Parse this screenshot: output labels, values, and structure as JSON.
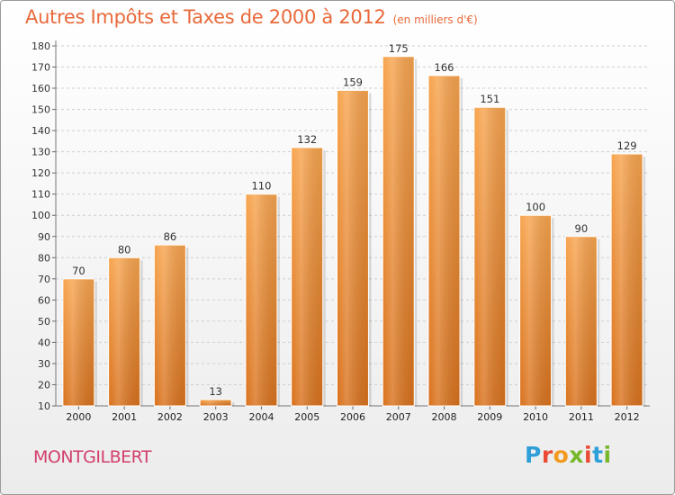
{
  "header": {
    "title": "Autres Impôts et Taxes de 2000 à 2012",
    "subtitle": "(en milliers d'€)"
  },
  "footer": {
    "city": "MONTGILBERT",
    "logo": {
      "letters": [
        "P",
        "r",
        "o",
        "x",
        "i",
        "t",
        "i"
      ],
      "colors": [
        "#2e9fd8",
        "#e94b35",
        "#f29a1f",
        "#76b82a",
        "#e94b35",
        "#2e9fd8",
        "#76b82a"
      ]
    }
  },
  "chart_data": {
    "type": "bar",
    "title": "Autres Impôts et Taxes de 2000 à 2012",
    "subtitle": "(en milliers d'€)",
    "categories": [
      "2000",
      "2001",
      "2002",
      "2003",
      "2004",
      "2005",
      "2006",
      "2007",
      "2008",
      "2009",
      "2010",
      "2011",
      "2012"
    ],
    "values": [
      70,
      80,
      86,
      13,
      110,
      132,
      159,
      175,
      166,
      151,
      100,
      90,
      129
    ],
    "ylim": [
      10,
      180
    ],
    "yticks": [
      10,
      20,
      30,
      40,
      50,
      60,
      70,
      80,
      90,
      100,
      110,
      120,
      130,
      140,
      150,
      160,
      170,
      180
    ],
    "grid": true,
    "bar_color": "#f5a04c",
    "xlabel": "",
    "ylabel": ""
  }
}
